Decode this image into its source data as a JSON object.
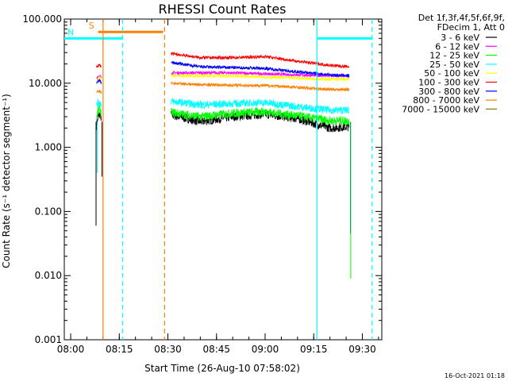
{
  "chart_data": {
    "type": "line",
    "title": "RHESSI Count Rates",
    "xlabel": "Start Time (26-Aug-10 07:58:02)",
    "ylabel": "Count Rate (s⁻¹ detector segment⁻¹)",
    "y_scale": "log",
    "ylim": [
      0.001,
      100
    ],
    "xlim": [
      "07:58:02",
      "09:36:00"
    ],
    "x_ticks": [
      "08:00",
      "08:15",
      "08:30",
      "08:45",
      "09:00",
      "09:15",
      "09:30"
    ],
    "y_ticks": [
      "0.001",
      "0.010",
      "0.100",
      "1.000",
      "10.000",
      "100.000"
    ],
    "grid": false,
    "legend_placement": "outside-right",
    "legend_header": [
      "Det 1f,3f,4f,5f,6f,9f,",
      "FDecim 1, Att 0"
    ],
    "series": [
      {
        "name": "3 - 6 keV",
        "color": "#000000",
        "segments": [
          {
            "x": [
              "08:08",
              "08:08:30",
              "08:09",
              "08:09:30"
            ],
            "y": [
              2.2,
              3.0,
              3.3,
              2.8
            ]
          },
          {
            "x": [
              "08:31",
              "08:40",
              "08:50",
              "09:00",
              "09:10",
              "09:20",
              "09:26"
            ],
            "y": [
              3.2,
              2.5,
              3.0,
              3.3,
              2.8,
              2.0,
              2.1
            ]
          }
        ]
      },
      {
        "name": "6 - 12 keV",
        "color": "#ff00ff",
        "segments": [
          {
            "x": [
              "08:08",
              "08:08:30",
              "08:09",
              "08:09:30"
            ],
            "y": [
              12,
              13,
              13,
              12
            ]
          },
          {
            "x": [
              "08:31",
              "08:40",
              "08:50",
              "09:00",
              "09:10",
              "09:20",
              "09:26"
            ],
            "y": [
              14.5,
              14.5,
              14.5,
              14,
              13.5,
              13,
              13
            ]
          }
        ]
      },
      {
        "name": "12 - 25 keV",
        "color": "#00ff00",
        "segments": [
          {
            "x": [
              "08:08",
              "08:08:30",
              "08:09",
              "08:09:30"
            ],
            "y": [
              3.0,
              3.8,
              3.9,
              3.4
            ]
          },
          {
            "x": [
              "08:31",
              "08:40",
              "08:50",
              "09:00",
              "09:10",
              "09:20",
              "09:26"
            ],
            "y": [
              3.5,
              3.0,
              3.4,
              3.6,
              3.1,
              2.6,
              2.6
            ]
          }
        ]
      },
      {
        "name": "25 - 50 keV",
        "color": "#00ffff",
        "segments": [
          {
            "x": [
              "08:08",
              "08:08:30",
              "08:09",
              "08:09:30"
            ],
            "y": [
              4.5,
              5.0,
              5.0,
              4.6
            ]
          },
          {
            "x": [
              "08:31",
              "08:40",
              "08:50",
              "09:00",
              "09:10",
              "09:20",
              "09:26"
            ],
            "y": [
              5.2,
              4.6,
              4.8,
              5.0,
              4.3,
              3.8,
              3.8
            ]
          }
        ]
      },
      {
        "name": "50 - 100 keV",
        "color": "#ffff00",
        "segments": [
          {
            "x": [
              "08:08",
              "08:08:30",
              "08:09",
              "08:09:30"
            ],
            "y": [
              11,
              12,
              12,
              11
            ]
          },
          {
            "x": [
              "08:31",
              "08:40",
              "08:50",
              "09:00",
              "09:10",
              "09:20",
              "09:26"
            ],
            "y": [
              13,
              13,
              13,
              12.5,
              12,
              11.5,
              11.5
            ]
          }
        ]
      },
      {
        "name": "100 - 300 keV",
        "color": "#ff0000",
        "segments": [
          {
            "x": [
              "08:08",
              "08:08:30",
              "08:09",
              "08:09:30"
            ],
            "y": [
              18,
              19,
              19,
              18
            ]
          },
          {
            "x": [
              "08:31",
              "08:40",
              "08:50",
              "09:00",
              "09:10",
              "09:20",
              "09:26"
            ],
            "y": [
              29,
              25,
              25,
              26,
              22,
              19,
              18
            ]
          }
        ]
      },
      {
        "name": "300 - 800 keV",
        "color": "#0000ff",
        "segments": [
          {
            "x": [
              "08:08",
              "08:08:30",
              "08:09",
              "08:09:30"
            ],
            "y": [
              10,
              11,
              11,
              10
            ]
          },
          {
            "x": [
              "08:31",
              "08:40",
              "08:50",
              "09:00",
              "09:10",
              "09:20",
              "09:26"
            ],
            "y": [
              21,
              18,
              17.5,
              17,
              15,
              13.5,
              13
            ]
          }
        ]
      },
      {
        "name": "800 - 7000 keV",
        "color": "#ff8000",
        "segments": [
          {
            "x": [
              "08:08",
              "08:08:30",
              "08:09",
              "08:09:30"
            ],
            "y": [
              7.0,
              7.5,
              7.5,
              7.0
            ]
          },
          {
            "x": [
              "08:31",
              "08:40",
              "08:50",
              "09:00",
              "09:10",
              "09:20",
              "09:26"
            ],
            "y": [
              10,
              9.5,
              9.3,
              9.2,
              8.6,
              8.0,
              8.0
            ]
          }
        ]
      },
      {
        "name": "7000 - 15000 keV",
        "color": "#808000",
        "segments": []
      }
    ],
    "annotations": [
      {
        "type": "span",
        "label": "S",
        "color": "#ff8000",
        "y": 63,
        "x": [
          "08:08:30",
          "08:28:30"
        ]
      },
      {
        "type": "span",
        "label": "N",
        "color": "#00ffff",
        "y": 50,
        "x": [
          "07:58:02",
          "08:16"
        ]
      },
      {
        "type": "span",
        "label": "",
        "color": "#00ffff",
        "y": 50,
        "x": [
          "09:16",
          "09:33"
        ]
      },
      {
        "type": "vline",
        "color": "#ff8000",
        "style": "solid",
        "x": "08:10"
      },
      {
        "type": "vline",
        "color": "#ff8000",
        "style": "dashed",
        "x": "08:29"
      },
      {
        "type": "vline",
        "color": "#00ffff",
        "style": "dashed",
        "x": "08:16"
      },
      {
        "type": "vline",
        "color": "#00ffff",
        "style": "solid",
        "x": "09:16"
      },
      {
        "type": "vline",
        "color": "#00ffff",
        "style": "dashed",
        "x": "09:33"
      }
    ]
  },
  "footer": {
    "timestamp": "16-Oct-2021 01:18"
  },
  "colors": {
    "background": "#ffffff",
    "axes": "#000000"
  }
}
